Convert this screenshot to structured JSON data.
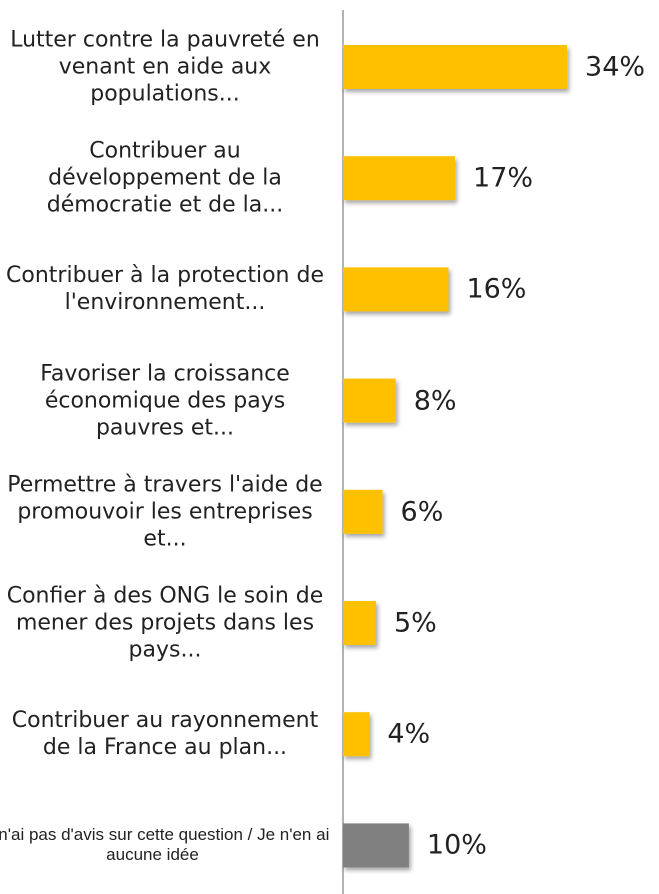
{
  "chart_data": {
    "type": "bar",
    "orientation": "horizontal",
    "categories": [
      "Lutter contre la pauvreté en venant en aide aux populations...",
      "Contribuer au développement de la démocratie et de la...",
      "Contribuer à la protection de l'environnement...",
      "Favoriser la croissance économique des pays pauvres et...",
      "Permettre à travers l'aide de promouvoir les entreprises et...",
      "Confier à des ONG le soin de mener des projets dans les pays...",
      "Contribuer au rayonnement de la France au plan...",
      "Je n'ai pas d'avis sur cette question / Je n'en ai aucune idée"
    ],
    "values": [
      34,
      17,
      16,
      8,
      6,
      5,
      4,
      10
    ],
    "value_labels": [
      "34%",
      "17%",
      "16%",
      "8%",
      "6%",
      "5%",
      "4%",
      "10%"
    ],
    "colors": [
      "#FFC000",
      "#FFC000",
      "#FFC000",
      "#FFC000",
      "#FFC000",
      "#FFC000",
      "#FFC000",
      "#808080"
    ]
  }
}
